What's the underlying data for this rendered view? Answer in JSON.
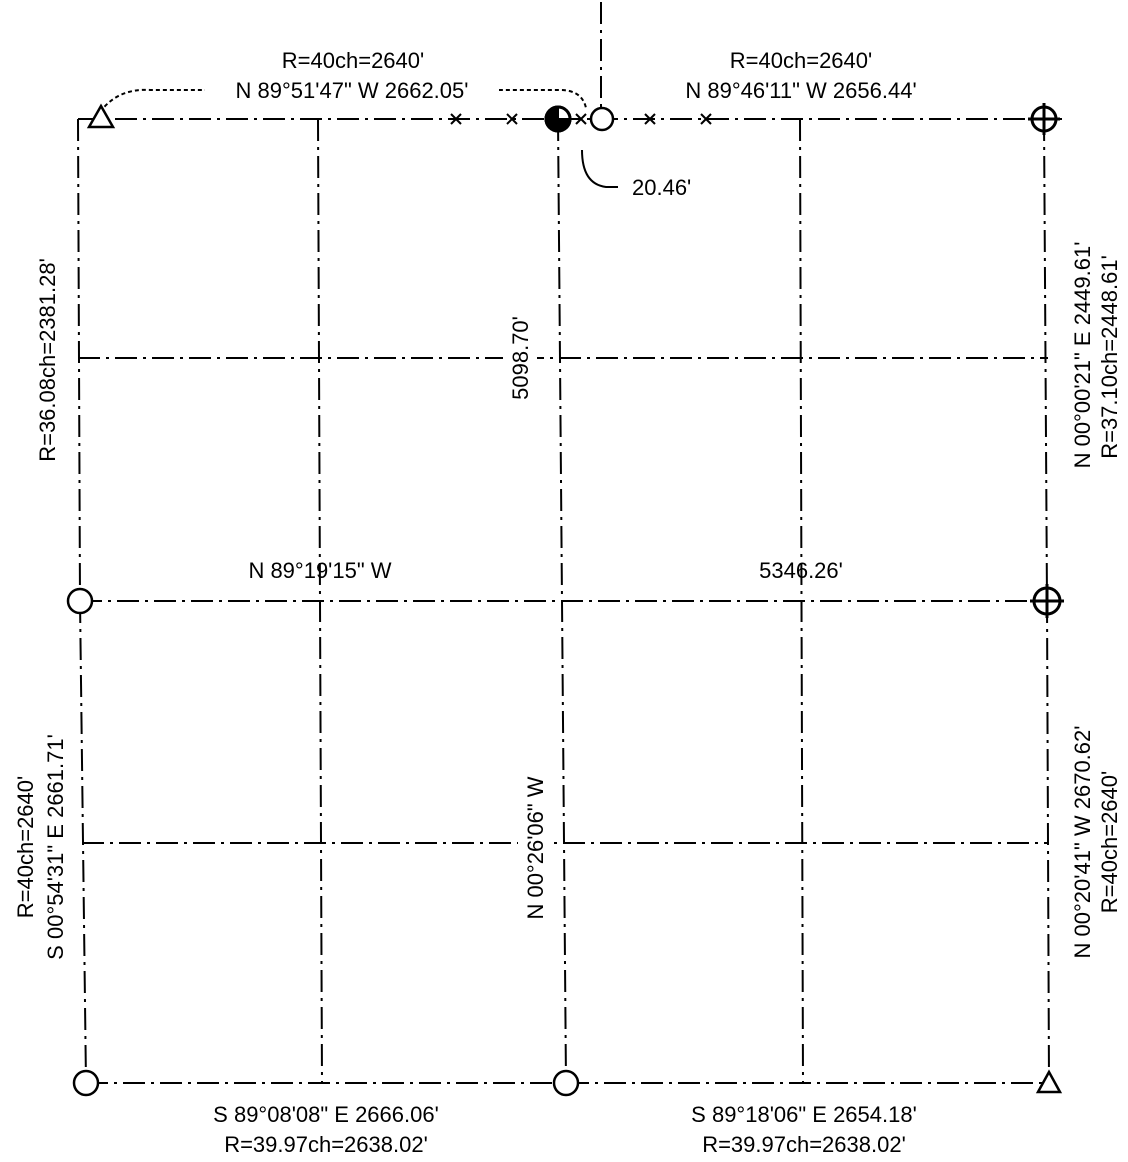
{
  "plat": {
    "north_top_label_left": "R=40ch=2640'",
    "north_bottom_label_left": "N 89°51'47\" W 2662.05'",
    "north_top_label_right": "R=40ch=2640'",
    "north_bottom_label_right": "N 89°46'11\" W 2656.44'",
    "offset_label": "20.46'",
    "west_upper_record": "R=36.08ch=2381.28'",
    "center_north_distance": "5098.70'",
    "east_upper_bearing": "N 00°00'21\" E 2449.61'",
    "east_upper_record": "R=37.10ch=2448.61'",
    "midline_bearing": "N 89°19'15\" W",
    "midline_distance": "5346.26'",
    "west_lower_record": "R=40ch=2640'",
    "west_lower_bearing": "S 00°54'31\" E 2661.71'",
    "center_south_bearing": "N 00°26'06\" W",
    "east_lower_bearing": "N 00°20'41\" W 2670.62'",
    "east_lower_record": "R=40ch=2640'",
    "south_bearing_left": "S 89°08'08\" E 2666.06'",
    "south_record_left": "R=39.97ch=2638.02'",
    "south_bearing_right": "S 89°18'06\" E 2654.18'",
    "south_record_right": "R=39.97ch=2638.02'"
  },
  "symbols": {
    "triangle_monument": "triangle-icon",
    "open_circle_monument": "circle-icon",
    "crossed_circle_monument": "crossed-circle-icon",
    "filled_quadrant_monument": "filled-quadrant-circle-icon",
    "fence_mark": "x-mark-icon"
  }
}
